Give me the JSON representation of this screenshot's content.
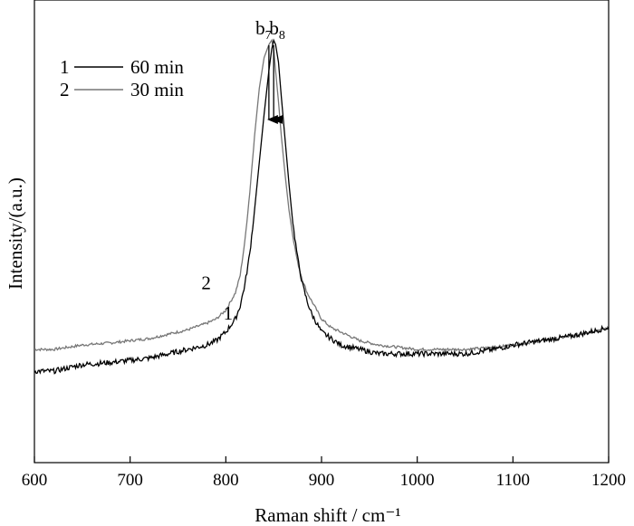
{
  "chart_data": {
    "type": "line",
    "title": "",
    "xlabel": "Raman shift / cm⁻¹",
    "ylabel": "Intensity/(a.u.)",
    "xlim": [
      600,
      1200
    ],
    "ylim": [
      0,
      1
    ],
    "xticks": [
      600,
      700,
      800,
      900,
      1000,
      1100,
      1200
    ],
    "yticks": [],
    "grid": false,
    "legend_position": "top-left",
    "series": [
      {
        "name": "60 min",
        "label": "1",
        "color": "#000000",
        "x": [
          600,
          620,
          650,
          680,
          700,
          720,
          740,
          760,
          780,
          790,
          800,
          810,
          815,
          820,
          825,
          830,
          835,
          840,
          845,
          848,
          850,
          852,
          855,
          858,
          862,
          866,
          870,
          875,
          880,
          885,
          890,
          895,
          900,
          910,
          920,
          930,
          940,
          950,
          960,
          980,
          1000,
          1020,
          1050,
          1080,
          1100,
          1130,
          1160,
          1200
        ],
        "y": [
          0.21,
          0.21,
          0.225,
          0.23,
          0.235,
          0.24,
          0.25,
          0.26,
          0.27,
          0.28,
          0.3,
          0.33,
          0.36,
          0.41,
          0.48,
          0.58,
          0.69,
          0.8,
          0.9,
          0.95,
          0.97,
          0.96,
          0.92,
          0.84,
          0.74,
          0.64,
          0.55,
          0.47,
          0.41,
          0.37,
          0.34,
          0.32,
          0.3,
          0.285,
          0.27,
          0.265,
          0.26,
          0.255,
          0.25,
          0.25,
          0.25,
          0.25,
          0.25,
          0.26,
          0.27,
          0.28,
          0.29,
          0.31
        ]
      },
      {
        "name": "30 min",
        "label": "2",
        "color": "#777777",
        "x": [
          600,
          620,
          650,
          680,
          700,
          720,
          740,
          760,
          780,
          790,
          800,
          810,
          815,
          820,
          825,
          830,
          835,
          840,
          845,
          848,
          850,
          852,
          855,
          858,
          862,
          866,
          870,
          875,
          880,
          885,
          890,
          895,
          900,
          910,
          920,
          930,
          940,
          950,
          960,
          980,
          1000,
          1020,
          1050,
          1080,
          1100,
          1130,
          1160,
          1200
        ],
        "y": [
          0.26,
          0.26,
          0.27,
          0.275,
          0.28,
          0.285,
          0.295,
          0.305,
          0.32,
          0.33,
          0.35,
          0.39,
          0.43,
          0.51,
          0.62,
          0.75,
          0.86,
          0.93,
          0.96,
          0.97,
          0.95,
          0.9,
          0.83,
          0.75,
          0.66,
          0.58,
          0.52,
          0.46,
          0.42,
          0.39,
          0.37,
          0.35,
          0.33,
          0.31,
          0.3,
          0.29,
          0.28,
          0.275,
          0.27,
          0.265,
          0.26,
          0.26,
          0.26,
          0.265,
          0.27,
          0.28,
          0.29,
          0.31
        ]
      }
    ],
    "annotations": [
      {
        "text": "b",
        "sub": "7",
        "x": 845
      },
      {
        "text": "b",
        "sub": "8",
        "x": 850
      }
    ],
    "legend": [
      {
        "label": "1",
        "text": "60 min",
        "color": "#000000"
      },
      {
        "label": "2",
        "text": "30 min",
        "color": "#777777"
      }
    ],
    "curve_labels": [
      {
        "text": "1",
        "x": 805,
        "y": 0.32
      },
      {
        "text": "2",
        "x": 782,
        "y": 0.39
      }
    ]
  }
}
